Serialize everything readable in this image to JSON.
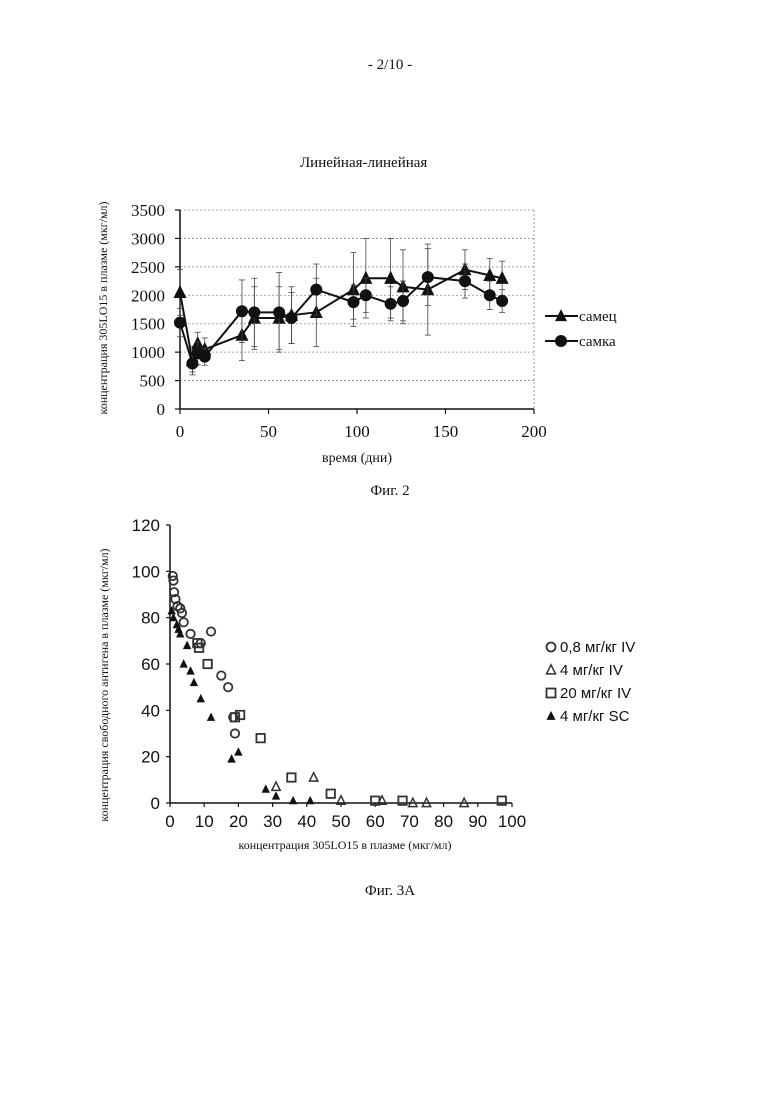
{
  "page": {
    "number": "- 2/10 -"
  },
  "figure2": {
    "caption": "Фиг. 2",
    "chart_data": {
      "type": "line",
      "title": "Линейная-линейная",
      "xlabel": "время (дни)",
      "ylabel": "концентрация 305LO15 в плазме (мкг/мл)",
      "xlim": [
        0,
        200
      ],
      "ylim": [
        0,
        3500
      ],
      "xticks": [
        0,
        50,
        100,
        150,
        200
      ],
      "yticks": [
        0,
        500,
        1000,
        1500,
        2000,
        2500,
        3000,
        3500
      ],
      "grid": true,
      "legend": "right",
      "series": [
        {
          "name": "самец",
          "marker": "triangle",
          "x": [
            0,
            7,
            10,
            14,
            35,
            42,
            56,
            63,
            77,
            98,
            105,
            119,
            126,
            140,
            161,
            175,
            182
          ],
          "y": [
            2050,
            850,
            1150,
            1050,
            1300,
            1600,
            1600,
            1650,
            1700,
            2100,
            2300,
            2300,
            2150,
            2100,
            2450,
            2350,
            2300
          ],
          "err": [
            400,
            250,
            200,
            200,
            450,
            550,
            550,
            500,
            600,
            650,
            700,
            700,
            650,
            800,
            350,
            300,
            300
          ]
        },
        {
          "name": "самка",
          "marker": "circle",
          "x": [
            0,
            7,
            10,
            14,
            35,
            42,
            56,
            63,
            77,
            98,
            105,
            119,
            126,
            140,
            161,
            175,
            182
          ],
          "y": [
            1520,
            800,
            980,
            920,
            1720,
            1700,
            1700,
            1600,
            2100,
            1880,
            2000,
            1850,
            1900,
            2320,
            2250,
            2000,
            1900
          ],
          "err": [
            250,
            150,
            200,
            150,
            550,
            600,
            700,
            450,
            450,
            300,
            300,
            300,
            350,
            500,
            300,
            250,
            200
          ]
        }
      ]
    }
  },
  "figure3": {
    "caption": "Фиг. 3А",
    "chart_data": {
      "type": "scatter",
      "title": "",
      "xlabel": "концентрация 305LO15 в плазме (мкг/мл)",
      "ylabel": "концентрация свободного антигена в плазме (мкг/мл)",
      "xlim": [
        0,
        100
      ],
      "ylim": [
        0,
        120
      ],
      "xticks": [
        0,
        10,
        20,
        30,
        40,
        50,
        60,
        70,
        80,
        90,
        100
      ],
      "yticks": [
        0,
        20,
        40,
        60,
        80,
        100,
        120
      ],
      "grid": false,
      "legend": "right",
      "series": [
        {
          "name": "0,8 мг/кг IV",
          "marker": "circle-open",
          "x": [
            0.8,
            1.0,
            1.2,
            1.6,
            2.2,
            3.0,
            3.5,
            4.0,
            6.0,
            9.0,
            12.0,
            15.0,
            17.0,
            19.0,
            18.5
          ],
          "y": [
            98,
            96,
            91,
            88,
            85,
            84,
            82,
            78,
            73,
            69,
            74,
            55,
            50,
            30,
            37
          ]
        },
        {
          "name": "4 мг/кг IV",
          "marker": "triangle-open",
          "x": [
            31,
            42,
            50,
            62,
            71,
            75,
            86
          ],
          "y": [
            7,
            11,
            1,
            1,
            0,
            0,
            0
          ]
        },
        {
          "name": "20 мг/кг IV",
          "marker": "square-open",
          "x": [
            8,
            8.5,
            11,
            19,
            20.5,
            26.5,
            35.5,
            47,
            60,
            68,
            97
          ],
          "y": [
            69,
            67,
            60,
            37,
            38,
            28,
            11,
            4,
            1,
            1,
            1
          ]
        },
        {
          "name": "4 мг/кг SC",
          "marker": "triangle-filled",
          "x": [
            0.5,
            1,
            2,
            2.5,
            3,
            4,
            5,
            6,
            7,
            9,
            12,
            18,
            20,
            28,
            31,
            36,
            41
          ],
          "y": [
            83,
            80,
            77,
            75,
            73,
            60,
            68,
            57,
            52,
            45,
            37,
            19,
            22,
            6,
            3,
            1,
            1
          ]
        }
      ]
    }
  }
}
